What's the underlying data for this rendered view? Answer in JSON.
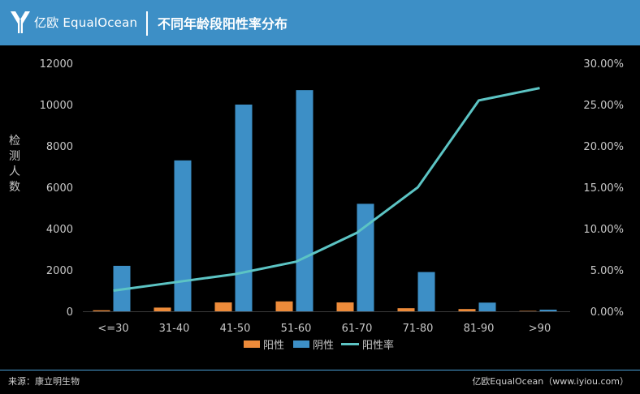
{
  "header": {
    "logo_text": "亿欧 EqualOcean",
    "title": "不同年龄段阳性率分布"
  },
  "footer": {
    "source": "来源：康立明生物",
    "credit": "亿欧EqualOcean（www.iyiou.com）"
  },
  "colors": {
    "header_bg": "#3d8fc6",
    "positive": "#ed8b3a",
    "negative": "#3d8fc6",
    "rate": "#5cc4c4"
  },
  "chart_data": {
    "type": "bar",
    "categories": [
      "<=30",
      "31-40",
      "41-50",
      "51-60",
      "61-70",
      "71-80",
      "81-90",
      ">90"
    ],
    "ylabel": "检测人数",
    "ylim": [
      0,
      12000
    ],
    "yticks": [
      "0",
      "2000",
      "4000",
      "6000",
      "8000",
      "10000",
      "12000"
    ],
    "y2lim": [
      0,
      0.3
    ],
    "y2ticks": [
      "0.00%",
      "5.00%",
      "10.00%",
      "15.00%",
      "20.00%",
      "25.00%",
      "30.00%"
    ],
    "series": [
      {
        "name": "阳性",
        "kind": "bar",
        "axis": "left",
        "values": [
          50,
          180,
          430,
          480,
          430,
          150,
          110,
          20
        ]
      },
      {
        "name": "阴性",
        "kind": "bar",
        "axis": "left",
        "values": [
          2200,
          7300,
          10000,
          10700,
          5200,
          1900,
          420,
          80
        ]
      },
      {
        "name": "阳性率",
        "kind": "line",
        "axis": "right",
        "values": [
          0.025,
          0.035,
          0.045,
          0.06,
          0.095,
          0.15,
          0.255,
          0.27
        ]
      }
    ],
    "legend_position": "bottom"
  }
}
